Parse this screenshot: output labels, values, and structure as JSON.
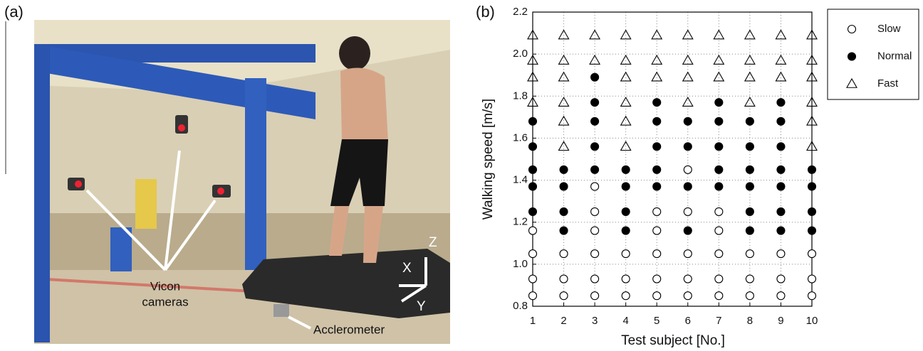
{
  "figure": {
    "panel_a_label": "(a)",
    "photo_labels": {
      "cameras": [
        "Vicon",
        "cameras"
      ],
      "accelerometer": "Acclerometer",
      "axis_x": "X",
      "axis_y": "Y",
      "axis_z": "Z"
    }
  },
  "chart_data": {
    "type": "scatter",
    "panel_label": "(b)",
    "x_label": "Test subject [No.]",
    "y_label": "Walking speed [m/s]",
    "xlim": [
      1,
      10
    ],
    "xticks": [
      1,
      2,
      3,
      4,
      5,
      6,
      7,
      8,
      9,
      10
    ],
    "ylim": [
      0.8,
      2.2
    ],
    "yticks": [
      0.8,
      {
        "value": 1,
        "label": "1.0"
      },
      1.2,
      1.4,
      1.6,
      1.8,
      {
        "value": 2,
        "label": "2.0"
      },
      2.2
    ],
    "grid": true,
    "legend": "outside-right",
    "series": [
      {
        "name": "Slow",
        "color": "#000000",
        "marker": "circle-open",
        "x": [
          6,
          3,
          3,
          5,
          6,
          7,
          1,
          3,
          5,
          7,
          1,
          2,
          3,
          4,
          5,
          6,
          7,
          8,
          9,
          10,
          1,
          2,
          3,
          4,
          5,
          6,
          7,
          8,
          9,
          10,
          1,
          2,
          3,
          4,
          5,
          6,
          7,
          8,
          9,
          10
        ],
        "values": [
          1.45,
          1.37,
          1.25,
          1.25,
          1.25,
          1.25,
          1.16,
          1.16,
          1.16,
          1.16,
          1.05,
          1.05,
          1.05,
          1.05,
          1.05,
          1.05,
          1.05,
          1.05,
          1.05,
          1.05,
          0.93,
          0.93,
          0.93,
          0.93,
          0.93,
          0.93,
          0.93,
          0.93,
          0.93,
          0.93,
          0.85,
          0.85,
          0.85,
          0.85,
          0.85,
          0.85,
          0.85,
          0.85,
          0.85,
          0.85
        ]
      },
      {
        "name": "Normal",
        "color": "#000000",
        "marker": "circle-filled",
        "x": [
          3,
          3,
          5,
          7,
          9,
          1,
          3,
          5,
          6,
          7,
          8,
          9,
          1,
          3,
          5,
          6,
          7,
          8,
          9,
          1,
          2,
          3,
          4,
          5,
          7,
          8,
          9,
          10,
          1,
          2,
          4,
          5,
          6,
          7,
          8,
          9,
          10,
          1,
          2,
          4,
          8,
          9,
          10,
          2,
          4,
          6,
          8,
          9,
          10
        ],
        "values": [
          1.89,
          1.77,
          1.77,
          1.77,
          1.77,
          1.68,
          1.68,
          1.68,
          1.68,
          1.68,
          1.68,
          1.68,
          1.56,
          1.56,
          1.56,
          1.56,
          1.56,
          1.56,
          1.56,
          1.45,
          1.45,
          1.45,
          1.45,
          1.45,
          1.45,
          1.45,
          1.45,
          1.45,
          1.37,
          1.37,
          1.37,
          1.37,
          1.37,
          1.37,
          1.37,
          1.37,
          1.37,
          1.25,
          1.25,
          1.25,
          1.25,
          1.25,
          1.25,
          1.16,
          1.16,
          1.16,
          1.16,
          1.16,
          1.16
        ]
      },
      {
        "name": "Fast",
        "color": "#000000",
        "marker": "triangle-open",
        "x": [
          1,
          2,
          3,
          4,
          5,
          6,
          7,
          8,
          9,
          10,
          1,
          2,
          3,
          4,
          5,
          6,
          7,
          8,
          9,
          10,
          1,
          2,
          4,
          5,
          6,
          7,
          8,
          9,
          10,
          1,
          2,
          4,
          6,
          8,
          10,
          2,
          4,
          10,
          2,
          4,
          10
        ],
        "values": [
          2.09,
          2.09,
          2.09,
          2.09,
          2.09,
          2.09,
          2.09,
          2.09,
          2.09,
          2.09,
          1.97,
          1.97,
          1.97,
          1.97,
          1.97,
          1.97,
          1.97,
          1.97,
          1.97,
          1.97,
          1.89,
          1.89,
          1.89,
          1.89,
          1.89,
          1.89,
          1.89,
          1.89,
          1.89,
          1.77,
          1.77,
          1.77,
          1.77,
          1.77,
          1.77,
          1.68,
          1.68,
          1.68,
          1.56,
          1.56,
          1.56
        ]
      }
    ]
  }
}
